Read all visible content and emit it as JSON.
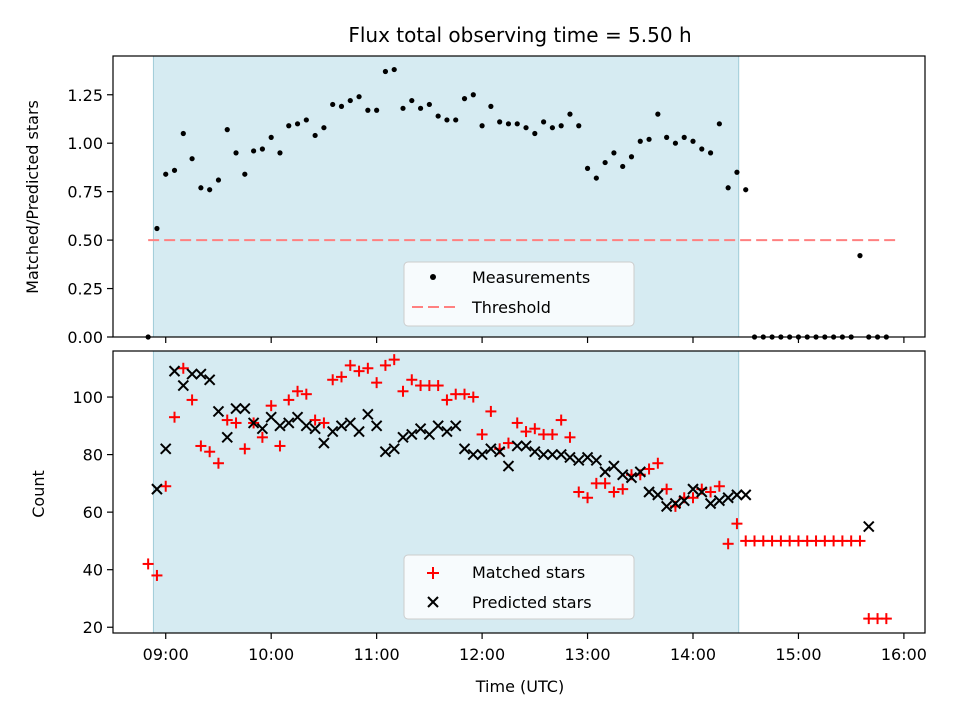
{
  "chart_data": [
    {
      "type": "scatter",
      "title": "Flux total observing time = 5.50 h",
      "xlabel": "",
      "ylabel": "Matched/Predicted stars",
      "ylim": [
        0.0,
        1.45
      ],
      "xlim": [
        "08:30",
        "16:12"
      ],
      "yticks": [
        "0.00",
        "0.25",
        "0.50",
        "0.75",
        "1.00",
        "1.25"
      ],
      "shaded_span": [
        "08:53",
        "14:26"
      ],
      "shade_color": "#add8e6",
      "grid": false,
      "legend_position": "bottom-center",
      "series": [
        {
          "name": "Measurements",
          "color": "#000000",
          "marker": "dot",
          "x": [
            "08:50",
            "08:55",
            "09:00",
            "09:05",
            "09:10",
            "09:15",
            "09:20",
            "09:25",
            "09:30",
            "09:35",
            "09:40",
            "09:45",
            "09:50",
            "09:55",
            "10:00",
            "10:05",
            "10:10",
            "10:15",
            "10:20",
            "10:25",
            "10:30",
            "10:35",
            "10:40",
            "10:45",
            "10:50",
            "10:55",
            "11:00",
            "11:05",
            "11:10",
            "11:15",
            "11:20",
            "11:25",
            "11:30",
            "11:35",
            "11:40",
            "11:45",
            "11:50",
            "11:55",
            "12:00",
            "12:05",
            "12:10",
            "12:15",
            "12:20",
            "12:25",
            "12:30",
            "12:35",
            "12:40",
            "12:45",
            "12:50",
            "12:55",
            "13:00",
            "13:05",
            "13:10",
            "13:15",
            "13:20",
            "13:25",
            "13:30",
            "13:35",
            "13:40",
            "13:45",
            "13:50",
            "13:55",
            "14:00",
            "14:05",
            "14:10",
            "14:15",
            "14:20",
            "14:25",
            "14:30",
            "14:35",
            "14:40",
            "14:45",
            "14:50",
            "14:55",
            "15:00",
            "15:05",
            "15:10",
            "15:15",
            "15:20",
            "15:25",
            "15:30",
            "15:35",
            "15:40",
            "15:45",
            "15:50"
          ],
          "y": [
            0.0,
            0.56,
            0.84,
            0.86,
            1.05,
            0.92,
            0.77,
            0.76,
            0.81,
            1.07,
            0.95,
            0.84,
            0.96,
            0.97,
            1.03,
            0.95,
            1.09,
            1.1,
            1.12,
            1.04,
            1.08,
            1.2,
            1.19,
            1.22,
            1.24,
            1.17,
            1.17,
            1.37,
            1.38,
            1.18,
            1.22,
            1.18,
            1.2,
            1.14,
            1.12,
            1.12,
            1.23,
            1.25,
            1.09,
            1.19,
            1.11,
            1.1,
            1.1,
            1.08,
            1.05,
            1.11,
            1.08,
            1.09,
            1.15,
            1.09,
            0.87,
            0.82,
            0.9,
            0.95,
            0.88,
            0.93,
            1.01,
            1.02,
            1.15,
            1.03,
            1.0,
            1.03,
            1.01,
            0.97,
            0.95,
            1.1,
            0.77,
            0.85,
            0.76,
            0.0,
            0.0,
            0.0,
            0.0,
            0.0,
            0.0,
            0.0,
            0.0,
            0.0,
            0.0,
            0.0,
            0.0,
            0.42,
            0.0,
            0.0,
            0.0
          ]
        },
        {
          "name": "Threshold",
          "color": "#ff8080",
          "style": "dashed",
          "x": [
            "08:50",
            "15:55"
          ],
          "y": [
            0.5,
            0.5
          ]
        }
      ]
    },
    {
      "type": "scatter",
      "title": "",
      "xlabel": "Time (UTC)",
      "ylabel": "Count",
      "ylim": [
        18,
        116
      ],
      "xlim": [
        "08:30",
        "16:12"
      ],
      "yticks": [
        "20",
        "40",
        "60",
        "80",
        "100"
      ],
      "xticks": [
        "09:00",
        "10:00",
        "11:00",
        "12:00",
        "13:00",
        "14:00",
        "15:00",
        "16:00"
      ],
      "shaded_span": [
        "08:53",
        "14:26"
      ],
      "shade_color": "#add8e6",
      "grid": false,
      "legend_position": "bottom-center",
      "series": [
        {
          "name": "Matched stars",
          "color": "#ff0000",
          "marker": "plus",
          "x": [
            "08:50",
            "08:55",
            "09:00",
            "09:05",
            "09:10",
            "09:15",
            "09:20",
            "09:25",
            "09:30",
            "09:35",
            "09:40",
            "09:45",
            "09:50",
            "09:55",
            "10:00",
            "10:05",
            "10:10",
            "10:15",
            "10:20",
            "10:25",
            "10:30",
            "10:35",
            "10:40",
            "10:45",
            "10:50",
            "10:55",
            "11:00",
            "11:05",
            "11:10",
            "11:15",
            "11:20",
            "11:25",
            "11:30",
            "11:35",
            "11:40",
            "11:45",
            "11:50",
            "11:55",
            "12:00",
            "12:05",
            "12:10",
            "12:15",
            "12:20",
            "12:25",
            "12:30",
            "12:35",
            "12:40",
            "12:45",
            "12:50",
            "12:55",
            "13:00",
            "13:05",
            "13:10",
            "13:15",
            "13:20",
            "13:25",
            "13:30",
            "13:35",
            "13:40",
            "13:45",
            "13:50",
            "13:55",
            "14:00",
            "14:05",
            "14:10",
            "14:15",
            "14:20",
            "14:25",
            "14:30",
            "14:35",
            "14:40",
            "14:45",
            "14:50",
            "14:55",
            "15:00",
            "15:05",
            "15:10",
            "15:15",
            "15:20",
            "15:25",
            "15:30",
            "15:35",
            "15:40",
            "15:45",
            "15:50"
          ],
          "y": [
            42,
            38,
            69,
            93,
            110,
            99,
            83,
            81,
            77,
            92,
            91,
            82,
            91,
            86,
            97,
            83,
            99,
            102,
            101,
            92,
            91,
            106,
            107,
            111,
            109,
            110,
            105,
            111,
            113,
            102,
            106,
            104,
            104,
            104,
            99,
            101,
            101,
            100,
            87,
            95,
            82,
            84,
            91,
            88,
            89,
            87,
            87,
            92,
            86,
            67,
            65,
            70,
            70,
            67,
            68,
            73,
            73,
            75,
            77,
            68,
            62,
            65,
            65,
            68,
            67,
            69,
            49,
            56,
            50,
            50,
            50,
            50,
            50,
            50,
            50,
            50,
            50,
            50,
            50,
            50,
            50,
            50,
            23,
            23,
            23
          ]
        },
        {
          "name": "Predicted stars",
          "color": "#000000",
          "marker": "x",
          "x": [
            "08:55",
            "09:00",
            "09:05",
            "09:10",
            "09:15",
            "09:20",
            "09:25",
            "09:30",
            "09:35",
            "09:40",
            "09:45",
            "09:50",
            "09:55",
            "10:00",
            "10:05",
            "10:10",
            "10:15",
            "10:20",
            "10:25",
            "10:30",
            "10:35",
            "10:40",
            "10:45",
            "10:50",
            "10:55",
            "11:00",
            "11:05",
            "11:10",
            "11:15",
            "11:20",
            "11:25",
            "11:30",
            "11:35",
            "11:40",
            "11:45",
            "11:50",
            "11:55",
            "12:00",
            "12:05",
            "12:10",
            "12:15",
            "12:20",
            "12:25",
            "12:30",
            "12:35",
            "12:40",
            "12:45",
            "12:50",
            "12:55",
            "13:00",
            "13:05",
            "13:10",
            "13:15",
            "13:20",
            "13:25",
            "13:30",
            "13:35",
            "13:40",
            "13:45",
            "13:50",
            "13:55",
            "14:00",
            "14:05",
            "14:10",
            "14:15",
            "14:20",
            "14:25",
            "14:30",
            "15:40"
          ],
          "y": [
            68,
            82,
            109,
            104,
            108,
            108,
            106,
            95,
            86,
            96,
            96,
            91,
            89,
            93,
            90,
            91,
            93,
            90,
            89,
            84,
            88,
            90,
            91,
            88,
            94,
            90,
            81,
            82,
            86,
            87,
            89,
            87,
            90,
            88,
            90,
            82,
            80,
            80,
            82,
            81,
            76,
            83,
            83,
            81,
            80,
            80,
            80,
            79,
            78,
            79,
            78,
            74,
            76,
            73,
            72,
            74,
            67,
            66,
            62,
            63,
            64,
            68,
            67,
            63,
            64,
            65,
            66,
            66,
            55
          ]
        }
      ]
    }
  ]
}
